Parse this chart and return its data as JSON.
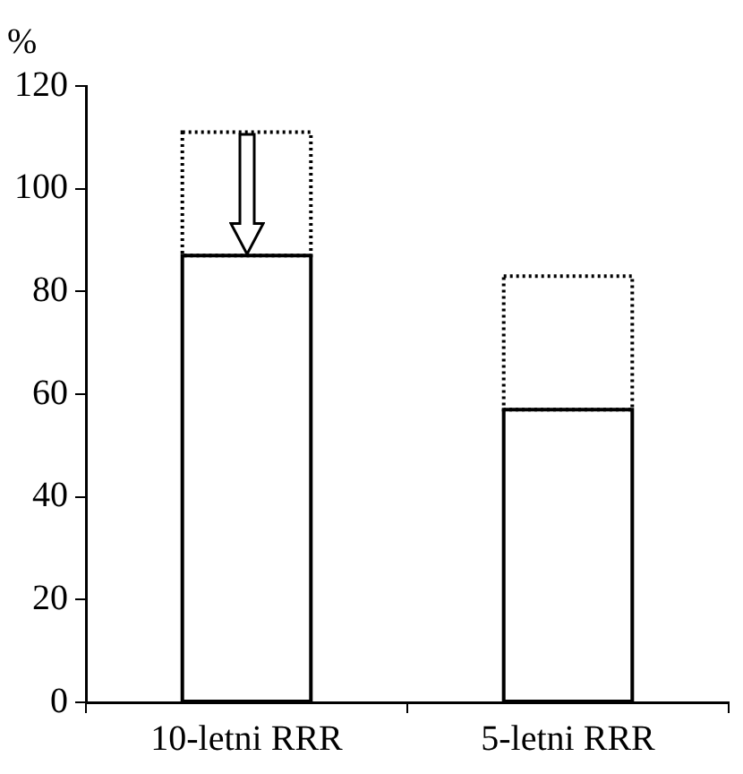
{
  "chart_data": {
    "type": "bar",
    "ylabel": "%",
    "categories": [
      "10-letni RRR",
      "5-letni RRR"
    ],
    "stacked": true,
    "series": [
      {
        "color": "#000000",
        "values": [
          87,
          57
        ],
        "line_style": "solid"
      },
      {
        "color": "#000000",
        "values": [
          24,
          26
        ],
        "line_style": "dotted"
      }
    ],
    "ylim": [
      0,
      120
    ],
    "yticks": [
      0,
      20,
      40,
      60,
      80,
      100,
      120
    ],
    "grid": false,
    "legend": false
  }
}
